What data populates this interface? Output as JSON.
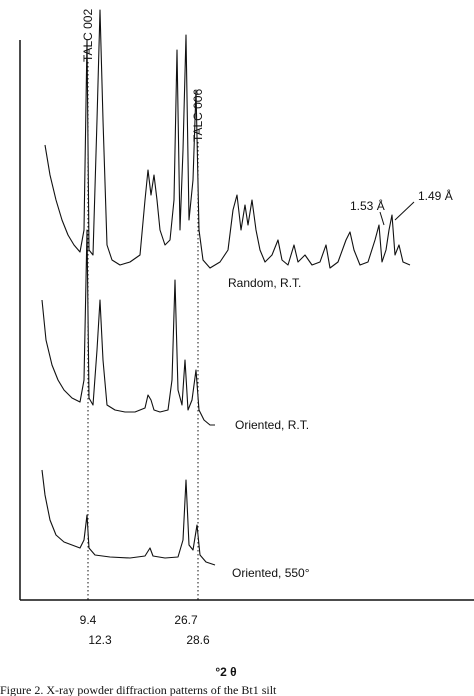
{
  "figure": {
    "peak_labels": [
      "TALC 002",
      "TALC 006"
    ],
    "trace_labels": [
      "Random, R.T.",
      "Oriented, R.T.",
      "Oriented, 550°"
    ],
    "spacing_labels": [
      "1.53 Å",
      "1.49 Å"
    ],
    "axis_values": [
      "9.4",
      "12.3",
      "26.7",
      "28.6"
    ],
    "axis_title": "°2 θ",
    "caption": "Figure 2.   X-ray powder diffraction patterns of the Bt1 silt"
  }
}
